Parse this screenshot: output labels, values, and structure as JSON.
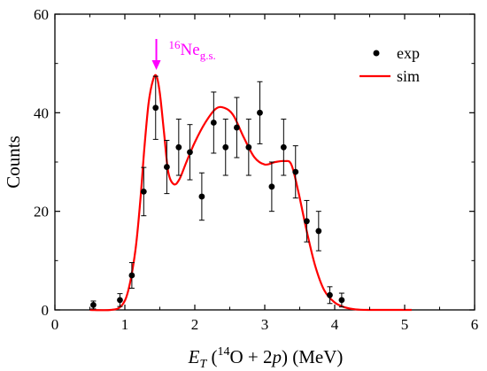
{
  "chart_data": {
    "type": "scatter",
    "xlabel": {
      "main": "E",
      "sub": "T",
      "p1": " (",
      "sup14": "14",
      "p2": "O + 2",
      "ital_p": "p",
      "p3": ") (MeV)"
    },
    "ylabel": "Counts",
    "xlim": [
      0,
      6
    ],
    "ylim": [
      0,
      60
    ],
    "xticks": [
      "0",
      "1",
      "2",
      "3",
      "4",
      "5",
      "6"
    ],
    "yticks": [
      "0",
      "20",
      "40",
      "60"
    ],
    "legend": {
      "placement": "top-right",
      "exp": "exp",
      "sim": "sim"
    },
    "annotation": {
      "sup": "16",
      "base": "Ne",
      "sub": "g.s.",
      "x": 1.45,
      "color": "#ff00ff"
    },
    "colors": {
      "exp": "#000000",
      "sim": "#ff0000",
      "axis": "#000000"
    },
    "series": [
      {
        "name": "exp",
        "points": [
          {
            "x": 0.55,
            "y": 1,
            "err": 0.8
          },
          {
            "x": 0.93,
            "y": 2,
            "err": 1.3
          },
          {
            "x": 1.1,
            "y": 7,
            "err": 2.6
          },
          {
            "x": 1.27,
            "y": 24,
            "err": 4.9
          },
          {
            "x": 1.44,
            "y": 41,
            "err": 6.4
          },
          {
            "x": 1.6,
            "y": 29,
            "err": 5.4
          },
          {
            "x": 1.77,
            "y": 33,
            "err": 5.7
          },
          {
            "x": 1.93,
            "y": 32,
            "err": 5.6
          },
          {
            "x": 2.1,
            "y": 23,
            "err": 4.8
          },
          {
            "x": 2.27,
            "y": 38,
            "err": 6.2
          },
          {
            "x": 2.44,
            "y": 33,
            "err": 5.7
          },
          {
            "x": 2.6,
            "y": 37,
            "err": 6.1
          },
          {
            "x": 2.77,
            "y": 33,
            "err": 5.7
          },
          {
            "x": 2.93,
            "y": 40,
            "err": 6.3
          },
          {
            "x": 3.1,
            "y": 25,
            "err": 5.0
          },
          {
            "x": 3.27,
            "y": 33,
            "err": 5.7
          },
          {
            "x": 3.44,
            "y": 28,
            "err": 5.3
          },
          {
            "x": 3.6,
            "y": 18,
            "err": 4.2
          },
          {
            "x": 3.77,
            "y": 16,
            "err": 4.0
          },
          {
            "x": 3.93,
            "y": 3,
            "err": 1.7
          },
          {
            "x": 4.1,
            "y": 2,
            "err": 1.4
          }
        ]
      },
      {
        "name": "sim",
        "x": [
          0.5,
          0.8,
          0.95,
          1.05,
          1.15,
          1.22,
          1.28,
          1.34,
          1.4,
          1.45,
          1.5,
          1.56,
          1.62,
          1.7,
          1.78,
          1.88,
          2.0,
          2.15,
          2.3,
          2.42,
          2.55,
          2.7,
          2.85,
          3.0,
          3.15,
          3.28,
          3.38,
          3.48,
          3.6,
          3.72,
          3.85,
          4.0,
          4.15,
          4.3,
          4.5,
          4.8,
          5.1
        ],
        "y": [
          0,
          0,
          0.8,
          4,
          12,
          22,
          33,
          42,
          46.5,
          47.5,
          44,
          36,
          28,
          25.5,
          26.5,
          30,
          34,
          38,
          40.8,
          41,
          39.5,
          35,
          31,
          29.5,
          30,
          30.2,
          29.5,
          24,
          16,
          9,
          4,
          1.5,
          0.5,
          0.1,
          0,
          0,
          0
        ]
      }
    ]
  }
}
